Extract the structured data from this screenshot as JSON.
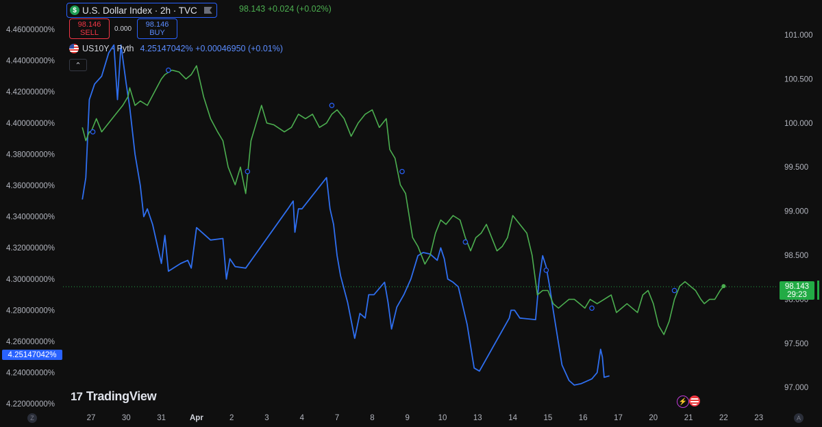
{
  "legend": {
    "primary_title": "U.S. Dollar Index · 2h · TVC",
    "primary_values": "98.143  +0.024 (+0.02%)",
    "sell_price": "98.146",
    "sell_label": "SELL",
    "spread": "0.000",
    "buy_price": "98.146",
    "buy_label": "BUY",
    "secondary_name": "US10Y · Pyth",
    "secondary_values": "4.25147042%  +0.00046950 (+0.01%)",
    "collapse_symbol": "⌃"
  },
  "price_labels": {
    "left_current": "4.25147042%",
    "right_current_price": "98.143",
    "right_countdown": "29:23"
  },
  "branding": {
    "logo_text": "TradingView"
  },
  "corner_buttons": {
    "left": "Z",
    "right": "A"
  },
  "colors": {
    "background": "#0f0f0f",
    "dxy_line": "#4caf50",
    "us10y_line": "#2962ff",
    "current_label": "#22ab45"
  },
  "chart_data": {
    "type": "line",
    "x_tick_labels": [
      "27",
      "30",
      "31",
      "Apr",
      "2",
      "3",
      "4",
      "7",
      "8",
      "9",
      "10",
      "13",
      "14",
      "15",
      "16",
      "17",
      "20",
      "21",
      "22",
      "23"
    ],
    "left_axis": {
      "ticks": [
        "4.46000000%",
        "4.44000000%",
        "4.42000000%",
        "4.40000000%",
        "4.38000000%",
        "4.36000000%",
        "4.34000000%",
        "4.32000000%",
        "4.30000000%",
        "4.28000000%",
        "4.26000000%",
        "4.24000000%",
        "4.22000000%"
      ],
      "range": [
        4.215,
        4.465
      ]
    },
    "right_axis": {
      "ticks": [
        "101.000",
        "100.500",
        "100.000",
        "99.500",
        "99.000",
        "98.500",
        "98.000",
        "97.500",
        "97.000"
      ],
      "range": [
        96.83,
        101.3
      ]
    },
    "series": [
      {
        "name": "U.S. Dollar Index",
        "axis": "right",
        "points": [
          [
            26.75,
            99.95
          ],
          [
            26.85,
            99.8
          ],
          [
            26.95,
            99.9
          ],
          [
            27.0,
            99.9
          ],
          [
            27.15,
            100.05
          ],
          [
            27.3,
            99.9
          ],
          [
            27.5,
            100.0
          ],
          [
            27.7,
            100.1
          ],
          [
            27.9,
            100.2
          ],
          [
            28.05,
            100.3
          ],
          [
            28.1,
            100.4
          ],
          [
            28.25,
            100.2
          ],
          [
            28.4,
            100.25
          ],
          [
            28.6,
            100.2
          ],
          [
            28.8,
            100.35
          ],
          [
            29.0,
            100.5
          ],
          [
            29.1,
            100.55
          ],
          [
            29.3,
            100.6
          ],
          [
            29.5,
            100.58
          ],
          [
            29.7,
            100.5
          ],
          [
            29.85,
            100.55
          ],
          [
            30.0,
            100.65
          ],
          [
            30.2,
            100.3
          ],
          [
            30.4,
            100.05
          ],
          [
            30.6,
            99.9
          ],
          [
            30.75,
            99.8
          ],
          [
            30.9,
            99.5
          ],
          [
            31.0,
            99.4
          ],
          [
            31.1,
            99.3
          ],
          [
            31.25,
            99.5
          ],
          [
            31.4,
            99.2
          ],
          [
            31.55,
            99.8
          ],
          [
            31.7,
            100.0
          ],
          [
            31.85,
            100.2
          ],
          [
            32.0,
            100.0
          ],
          [
            32.2,
            99.98
          ],
          [
            32.5,
            99.9
          ],
          [
            32.7,
            99.95
          ],
          [
            32.9,
            100.1
          ],
          [
            33.1,
            100.05
          ],
          [
            33.3,
            100.1
          ],
          [
            33.5,
            99.95
          ],
          [
            33.7,
            100.0
          ],
          [
            33.85,
            100.1
          ],
          [
            34.0,
            100.15
          ],
          [
            34.2,
            100.05
          ],
          [
            34.4,
            99.85
          ],
          [
            34.6,
            100.0
          ],
          [
            34.8,
            100.1
          ],
          [
            35.0,
            100.15
          ],
          [
            35.2,
            99.95
          ],
          [
            35.4,
            100.05
          ],
          [
            35.5,
            99.7
          ],
          [
            35.65,
            99.6
          ],
          [
            35.8,
            99.3
          ],
          [
            35.95,
            99.2
          ],
          [
            36.15,
            98.7
          ],
          [
            36.3,
            98.6
          ],
          [
            36.5,
            98.4
          ],
          [
            36.65,
            98.5
          ],
          [
            36.8,
            98.75
          ],
          [
            36.95,
            98.9
          ],
          [
            37.1,
            98.85
          ],
          [
            37.3,
            98.95
          ],
          [
            37.5,
            98.9
          ],
          [
            37.65,
            98.7
          ],
          [
            37.8,
            98.55
          ],
          [
            37.95,
            98.7
          ],
          [
            38.1,
            98.75
          ],
          [
            38.25,
            98.85
          ],
          [
            38.4,
            98.7
          ],
          [
            38.55,
            98.55
          ],
          [
            38.7,
            98.6
          ],
          [
            38.85,
            98.7
          ],
          [
            39.0,
            98.95
          ],
          [
            39.2,
            98.85
          ],
          [
            39.4,
            98.75
          ],
          [
            39.55,
            98.5
          ],
          [
            39.7,
            98.05
          ],
          [
            39.85,
            98.1
          ],
          [
            40.0,
            98.1
          ],
          [
            40.15,
            97.95
          ],
          [
            40.3,
            97.9
          ],
          [
            40.45,
            97.95
          ],
          [
            40.6,
            98.0
          ],
          [
            40.75,
            98.0
          ],
          [
            40.9,
            97.95
          ],
          [
            41.05,
            97.9
          ],
          [
            41.2,
            98.0
          ],
          [
            41.4,
            97.95
          ],
          [
            41.6,
            98.0
          ],
          [
            41.8,
            98.05
          ],
          [
            41.95,
            97.85
          ],
          [
            42.1,
            97.9
          ],
          [
            42.25,
            97.95
          ],
          [
            42.4,
            97.9
          ],
          [
            42.55,
            97.85
          ],
          [
            42.7,
            98.05
          ],
          [
            42.85,
            98.1
          ],
          [
            43.0,
            97.95
          ],
          [
            43.15,
            97.7
          ],
          [
            43.3,
            97.6
          ],
          [
            43.45,
            97.75
          ],
          [
            43.6,
            98.0
          ],
          [
            43.75,
            98.15
          ],
          [
            43.9,
            98.2
          ],
          [
            44.05,
            98.15
          ],
          [
            44.2,
            98.1
          ],
          [
            44.35,
            98.0
          ],
          [
            44.45,
            97.95
          ],
          [
            44.6,
            98.0
          ],
          [
            44.75,
            98.0
          ],
          [
            44.9,
            98.1
          ],
          [
            45.0,
            98.15
          ]
        ]
      },
      {
        "name": "US10Y",
        "axis": "left",
        "points": [
          [
            26.75,
            4.351
          ],
          [
            26.85,
            4.365
          ],
          [
            26.95,
            4.415
          ],
          [
            27.1,
            4.425
          ],
          [
            27.3,
            4.43
          ],
          [
            27.5,
            4.445
          ],
          [
            27.65,
            4.45
          ],
          [
            27.75,
            4.415
          ],
          [
            27.85,
            4.45
          ],
          [
            28.0,
            4.425
          ],
          [
            28.1,
            4.41
          ],
          [
            28.25,
            4.38
          ],
          [
            28.4,
            4.36
          ],
          [
            28.5,
            4.34
          ],
          [
            28.6,
            4.345
          ],
          [
            28.75,
            4.335
          ],
          [
            29.0,
            4.31
          ],
          [
            29.1,
            4.328
          ],
          [
            29.2,
            4.305
          ],
          [
            29.55,
            4.31
          ],
          [
            29.75,
            4.312
          ],
          [
            29.85,
            4.307
          ],
          [
            30.0,
            4.333
          ],
          [
            30.4,
            4.325
          ],
          [
            30.75,
            4.326
          ],
          [
            30.85,
            4.3
          ],
          [
            30.95,
            4.313
          ],
          [
            31.1,
            4.308
          ],
          [
            31.4,
            4.307
          ],
          [
            32.6,
            4.345
          ],
          [
            32.75,
            4.35
          ],
          [
            32.8,
            4.33
          ],
          [
            32.9,
            4.345
          ],
          [
            33.0,
            4.345
          ],
          [
            33.7,
            4.365
          ],
          [
            33.8,
            4.345
          ],
          [
            33.9,
            4.335
          ],
          [
            34.0,
            4.315
          ],
          [
            34.1,
            4.302
          ],
          [
            34.3,
            4.285
          ],
          [
            34.5,
            4.262
          ],
          [
            34.65,
            4.278
          ],
          [
            34.8,
            4.275
          ],
          [
            34.9,
            4.29
          ],
          [
            35.05,
            4.29
          ],
          [
            35.35,
            4.298
          ],
          [
            35.45,
            4.285
          ],
          [
            35.55,
            4.268
          ],
          [
            35.7,
            4.282
          ],
          [
            35.9,
            4.29
          ],
          [
            36.1,
            4.3
          ],
          [
            36.3,
            4.315
          ],
          [
            36.45,
            4.317
          ],
          [
            36.65,
            4.316
          ],
          [
            36.85,
            4.312
          ],
          [
            36.95,
            4.32
          ],
          [
            37.05,
            4.313
          ],
          [
            37.15,
            4.3
          ],
          [
            37.3,
            4.298
          ],
          [
            37.45,
            4.295
          ],
          [
            37.7,
            4.271
          ],
          [
            37.9,
            4.243
          ],
          [
            38.05,
            4.241
          ],
          [
            38.4,
            4.255
          ],
          [
            38.9,
            4.275
          ],
          [
            38.95,
            4.28
          ],
          [
            39.05,
            4.28
          ],
          [
            39.2,
            4.275
          ],
          [
            39.65,
            4.274
          ],
          [
            39.75,
            4.3
          ],
          [
            39.85,
            4.315
          ],
          [
            39.95,
            4.308
          ],
          [
            40.05,
            4.295
          ],
          [
            40.15,
            4.28
          ],
          [
            40.4,
            4.245
          ],
          [
            40.6,
            4.235
          ],
          [
            40.75,
            4.232
          ],
          [
            40.95,
            4.233
          ],
          [
            41.25,
            4.236
          ],
          [
            41.4,
            4.24
          ],
          [
            41.5,
            4.255
          ],
          [
            41.55,
            4.25
          ],
          [
            41.6,
            4.237
          ],
          [
            41.75,
            4.238
          ]
        ]
      }
    ],
    "markers_dxy": [
      [
        27.05,
        99.9
      ],
      [
        29.2,
        100.6
      ],
      [
        31.45,
        99.45
      ],
      [
        33.85,
        100.2
      ],
      [
        35.85,
        99.45
      ],
      [
        37.65,
        98.65
      ],
      [
        39.95,
        98.33
      ],
      [
        41.25,
        97.9
      ],
      [
        43.6,
        98.1
      ]
    ],
    "current": {
      "dxy": 98.143,
      "us10y": 4.25147042
    }
  }
}
